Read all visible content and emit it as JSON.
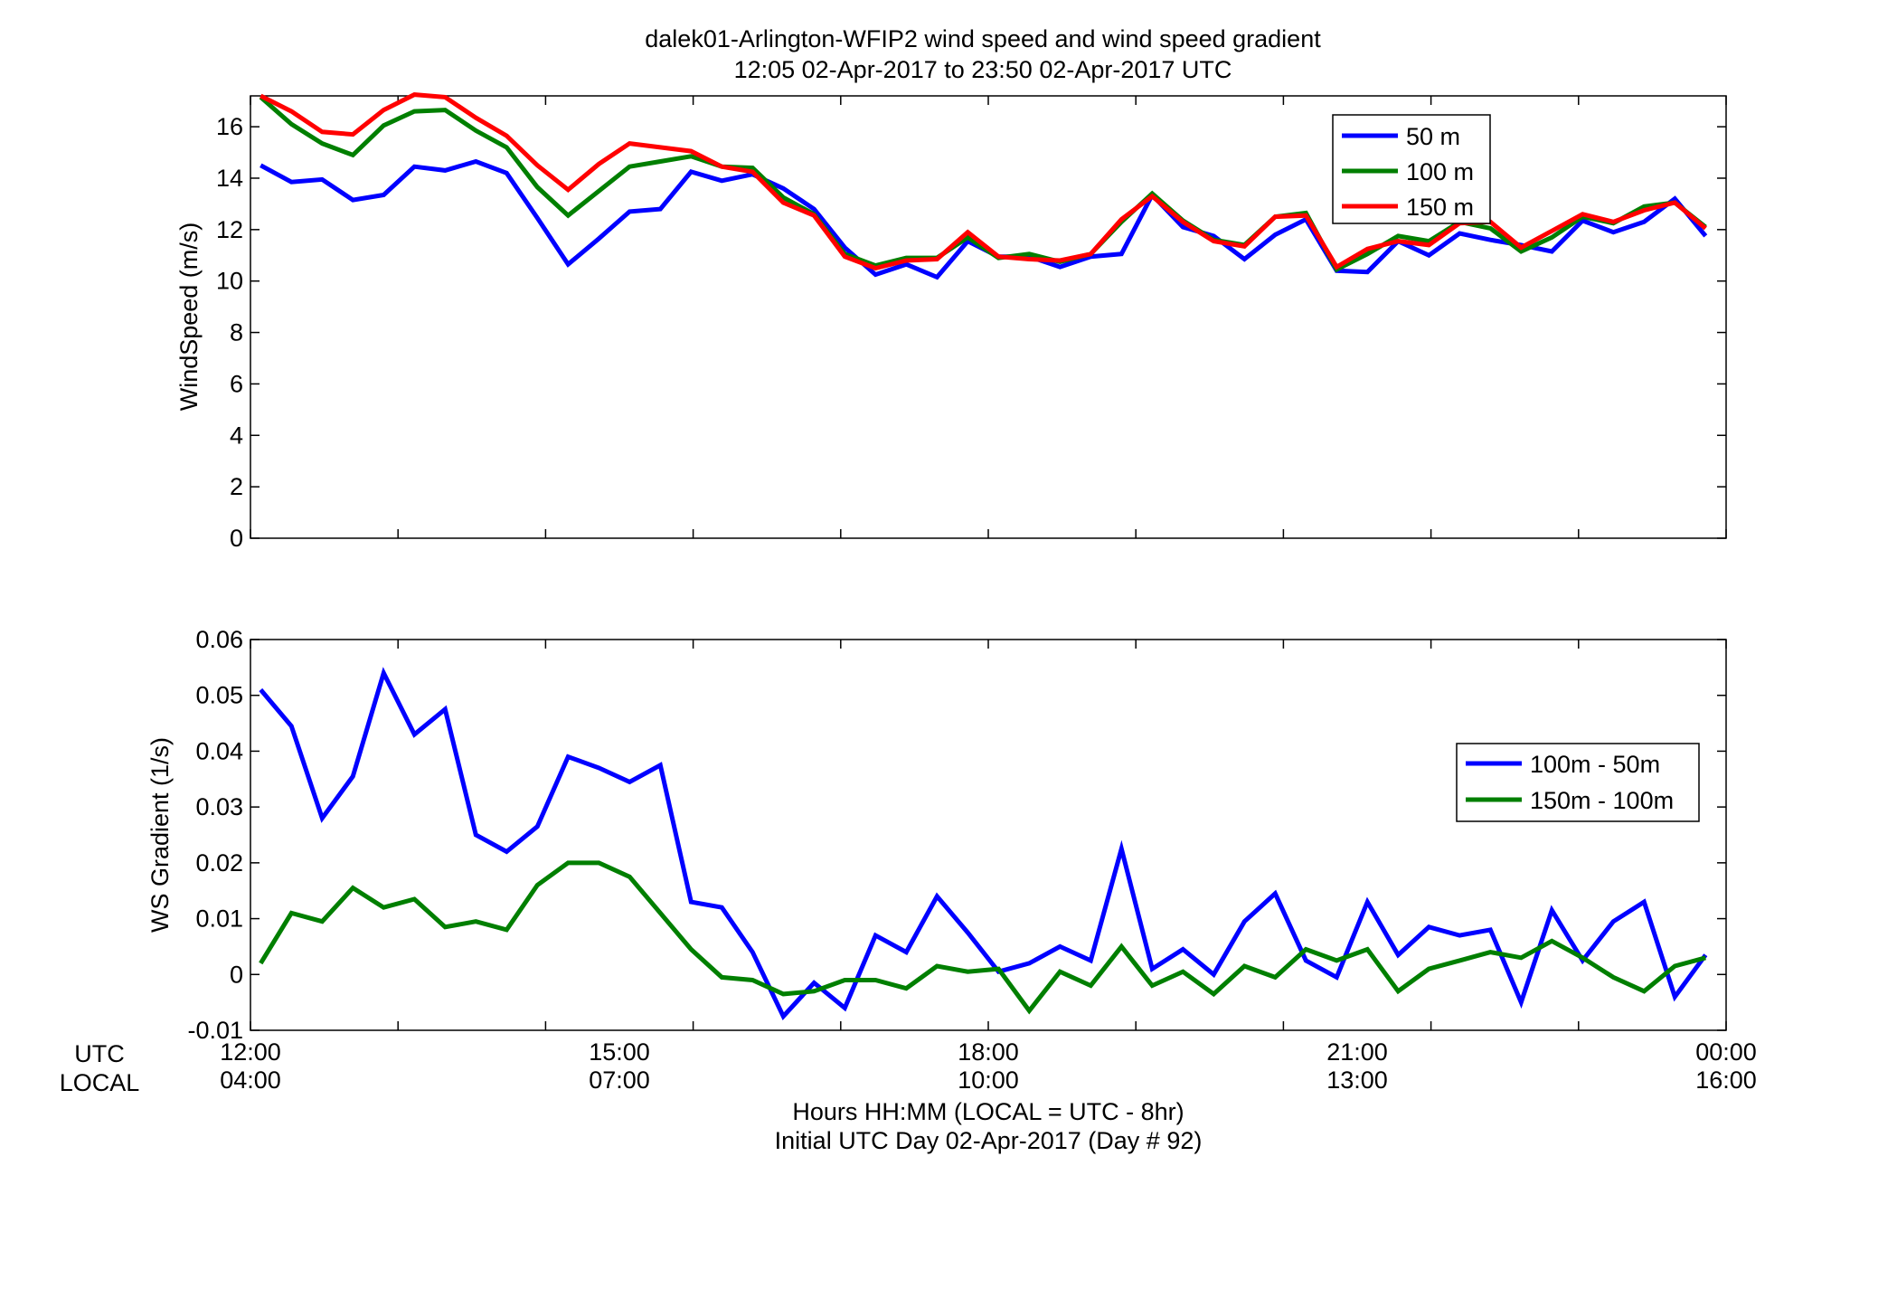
{
  "title": {
    "line1": "dalek01-Arlington-WFIP2  wind speed and wind speed gradient",
    "line2": "12:05 02-Apr-2017 to 23:50 02-Apr-2017  UTC"
  },
  "xaxis": {
    "row_label_utc": "UTC",
    "row_label_local": "LOCAL",
    "utc_ticks": [
      "12:00",
      "15:00",
      "18:00",
      "21:00",
      "00:00"
    ],
    "local_ticks": [
      "04:00",
      "07:00",
      "10:00",
      "13:00",
      "16:00"
    ],
    "label_line1": "Hours HH:MM  (LOCAL = UTC - 8hr)",
    "label_line2": "Initial UTC Day 02-Apr-2017 (Day # 92)"
  },
  "colors": {
    "blue": "#0000ff",
    "green": "#007f00",
    "red": "#ff0000"
  },
  "chart_data": [
    {
      "type": "line",
      "ylabel": "WindSpeed (m/s)",
      "xlim": [
        12.0,
        24.0
      ],
      "ylim": [
        0,
        17.2
      ],
      "xticks": [
        12,
        13.2,
        14.4,
        15.6,
        16.8,
        18,
        19.2,
        20.4,
        21.6,
        22.8,
        24
      ],
      "yticks": [
        0,
        2,
        4,
        6,
        8,
        10,
        12,
        14,
        16
      ],
      "ytick_labels": [
        "0",
        "2",
        "4",
        "6",
        "8",
        "10",
        "12",
        "14",
        "16"
      ],
      "legend_position": "top-right",
      "x": [
        12.0833,
        12.3333,
        12.5833,
        12.8333,
        13.0833,
        13.3333,
        13.5833,
        13.8333,
        14.0833,
        14.3333,
        14.5833,
        14.8333,
        15.0833,
        15.3333,
        15.5833,
        15.8333,
        16.0833,
        16.3333,
        16.5833,
        16.8333,
        17.0833,
        17.3333,
        17.5833,
        17.8333,
        18.0833,
        18.3333,
        18.5833,
        18.8333,
        19.0833,
        19.3333,
        19.5833,
        19.8333,
        20.0833,
        20.3333,
        20.5833,
        20.8333,
        21.0833,
        21.3333,
        21.5833,
        21.8333,
        22.0833,
        22.3333,
        22.5833,
        22.8333,
        23.0833,
        23.3333,
        23.5833,
        23.8333
      ],
      "series": [
        {
          "name": "50 m",
          "color": "#0000ff",
          "values": [
            14.5,
            13.85,
            13.95,
            13.15,
            13.35,
            14.45,
            14.3,
            14.65,
            14.2,
            12.45,
            10.65,
            11.65,
            12.7,
            12.8,
            14.25,
            13.9,
            14.15,
            13.6,
            12.8,
            11.3,
            10.25,
            10.65,
            10.15,
            11.55,
            10.95,
            10.95,
            10.55,
            10.95,
            11.05,
            13.35,
            12.1,
            11.75,
            10.85,
            11.8,
            12.4,
            10.4,
            10.35,
            11.55,
            11.0,
            11.85,
            11.6,
            11.4,
            11.15,
            12.35,
            11.9,
            12.3,
            13.2,
            11.75
          ]
        },
        {
          "name": "100 m",
          "color": "#007f00",
          "values": [
            17.15,
            16.1,
            15.35,
            14.9,
            16.05,
            16.6,
            16.65,
            15.85,
            15.2,
            13.65,
            12.55,
            13.5,
            14.45,
            14.65,
            14.85,
            14.45,
            14.4,
            13.25,
            12.6,
            11.05,
            10.6,
            10.9,
            10.9,
            11.7,
            10.9,
            11.05,
            10.75,
            11.05,
            12.3,
            13.4,
            12.35,
            11.6,
            11.4,
            12.5,
            12.65,
            10.45,
            11.05,
            11.75,
            11.55,
            12.3,
            12.05,
            11.15,
            11.7,
            12.5,
            12.25,
            12.9,
            13.05,
            12.1
          ]
        },
        {
          "name": "150 m",
          "color": "#ff0000",
          "values": [
            17.2,
            16.6,
            15.8,
            15.7,
            16.65,
            17.25,
            17.15,
            16.35,
            15.65,
            14.5,
            13.55,
            14.55,
            15.35,
            15.2,
            15.05,
            14.45,
            14.25,
            13.05,
            12.55,
            10.95,
            10.5,
            10.8,
            10.85,
            11.9,
            10.95,
            10.85,
            10.8,
            11.05,
            12.4,
            13.3,
            12.3,
            11.55,
            11.35,
            12.5,
            12.55,
            10.55,
            11.25,
            11.55,
            11.4,
            12.25,
            12.3,
            11.3,
            11.95,
            12.6,
            12.3,
            12.75,
            13.05,
            12.05
          ]
        }
      ]
    },
    {
      "type": "line",
      "ylabel": "WS Gradient (1/s)",
      "xlim": [
        12.0,
        24.0
      ],
      "ylim": [
        -0.01,
        0.06
      ],
      "xticks": [
        12,
        13.2,
        14.4,
        15.6,
        16.8,
        18,
        19.2,
        20.4,
        21.6,
        22.8,
        24
      ],
      "yticks": [
        -0.01,
        0,
        0.01,
        0.02,
        0.03,
        0.04,
        0.05,
        0.06
      ],
      "ytick_labels": [
        "-0.01",
        "0",
        "0.01",
        "0.02",
        "0.03",
        "0.04",
        "0.05",
        "0.06"
      ],
      "legend_position": "right",
      "x": [
        12.0833,
        12.3333,
        12.5833,
        12.8333,
        13.0833,
        13.3333,
        13.5833,
        13.8333,
        14.0833,
        14.3333,
        14.5833,
        14.8333,
        15.0833,
        15.3333,
        15.5833,
        15.8333,
        16.0833,
        16.3333,
        16.5833,
        16.8333,
        17.0833,
        17.3333,
        17.5833,
        17.8333,
        18.0833,
        18.3333,
        18.5833,
        18.8333,
        19.0833,
        19.3333,
        19.5833,
        19.8333,
        20.0833,
        20.3333,
        20.5833,
        20.8333,
        21.0833,
        21.3333,
        21.5833,
        21.8333,
        22.0833,
        22.3333,
        22.5833,
        22.8333,
        23.0833,
        23.3333,
        23.5833,
        23.8333
      ],
      "series": [
        {
          "name": "100m - 50m",
          "color": "#0000ff",
          "values": [
            0.051,
            0.0445,
            0.028,
            0.0355,
            0.054,
            0.043,
            0.0475,
            0.025,
            0.022,
            0.0265,
            0.039,
            0.037,
            0.0345,
            0.0375,
            0.013,
            0.012,
            0.004,
            -0.0075,
            -0.0015,
            -0.006,
            0.007,
            0.004,
            0.014,
            0.0075,
            0.0005,
            0.002,
            0.005,
            0.0025,
            0.0225,
            0.001,
            0.0045,
            0.0,
            0.0095,
            0.0145,
            0.0025,
            -0.0005,
            0.013,
            0.0035,
            0.0085,
            0.007,
            0.008,
            -0.005,
            0.0115,
            0.0025,
            0.0095,
            0.013,
            -0.004,
            0.0035
          ]
        },
        {
          "name": "150m - 100m",
          "color": "#007f00",
          "values": [
            0.002,
            0.011,
            0.0095,
            0.0155,
            0.012,
            0.0135,
            0.0085,
            0.0095,
            0.008,
            0.016,
            0.02,
            0.02,
            0.0175,
            0.011,
            0.0045,
            -0.0005,
            -0.001,
            -0.0035,
            -0.003,
            -0.001,
            -0.001,
            -0.0025,
            0.0015,
            0.0005,
            0.001,
            -0.0065,
            0.0005,
            -0.002,
            0.005,
            -0.002,
            0.0005,
            -0.0035,
            0.0015,
            -0.0005,
            0.0045,
            0.0025,
            0.0045,
            -0.003,
            0.001,
            0.0025,
            0.004,
            0.003,
            0.006,
            0.003,
            -0.0005,
            -0.003,
            0.0015,
            0.003
          ]
        }
      ]
    }
  ]
}
